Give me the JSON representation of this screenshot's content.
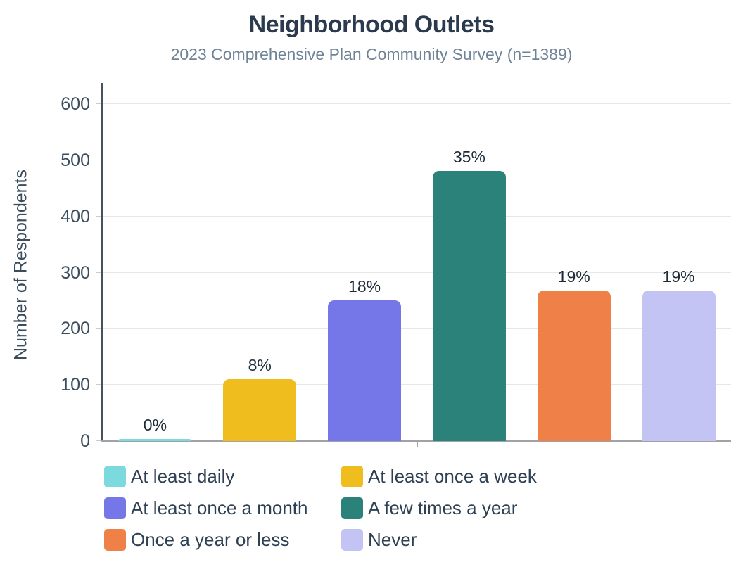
{
  "chart_data": {
    "type": "bar",
    "title": "Neighborhood Outlets",
    "subtitle": "2023 Comprehensive Plan Community Survey (n=1389)",
    "xlabel": "",
    "ylabel": "Number of Respondents",
    "ylim": [
      0,
      600
    ],
    "yticks": [
      0,
      100,
      200,
      300,
      400,
      500,
      600
    ],
    "grid": true,
    "legend_position": "bottom",
    "legend_columns": 2,
    "categories": [
      "At least daily",
      "At least once a week",
      "At least once a month",
      "A few times a year",
      "Once a year or less",
      "Never"
    ],
    "values": [
      4,
      110,
      250,
      481,
      268,
      268
    ],
    "bar_labels": [
      "0%",
      "8%",
      "18%",
      "35%",
      "19%",
      "19%"
    ],
    "colors": [
      "#7cdade",
      "#efbd1d",
      "#7577e8",
      "#2b827b",
      "#ef8048",
      "#c3c3f4"
    ],
    "theme": {
      "title_color": "#2b3a4d",
      "subtitle_color": "#6f8396",
      "axis_text_color": "#3b4d5d",
      "bar_label_color": "#1e2b38",
      "legend_text_color": "#2e4053",
      "gridline_color": "#e7e7e7",
      "y_axis_line_color": "#46525e",
      "x_axis_line_color": "#a2a2a6",
      "background_color": "#ffffff"
    }
  }
}
